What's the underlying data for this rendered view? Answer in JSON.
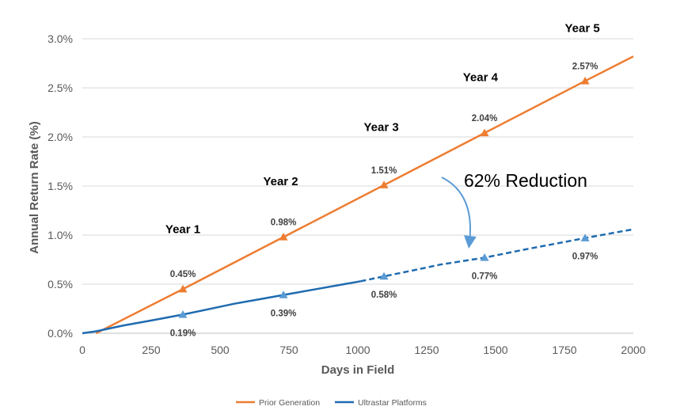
{
  "chart_data": {
    "type": "line",
    "title": "",
    "xlabel": "Days in Field",
    "ylabel": "Annual Return Rate (%)",
    "xlim": [
      0,
      2000
    ],
    "ylim": [
      0,
      3.0
    ],
    "x_ticks": [
      "0",
      "250",
      "500",
      "750",
      "1000",
      "1250",
      "1500",
      "1750",
      "2000"
    ],
    "y_ticks": [
      "0.0%",
      "0.5%",
      "1.0%",
      "1.5%",
      "2.0%",
      "2.5%",
      "3.0%"
    ],
    "grid": "horizontal",
    "legend_position": "bottom",
    "series": [
      {
        "name": "Prior Generation",
        "color": "#ED7D31",
        "points": [
          [
            50,
            0.0
          ],
          [
            365,
            0.45
          ],
          [
            730,
            0.98
          ],
          [
            1095,
            1.51
          ],
          [
            1460,
            2.04
          ],
          [
            1825,
            2.57
          ],
          [
            2000,
            2.82
          ]
        ],
        "markers": [
          {
            "x": 365,
            "y": 0.45,
            "label": "0.45%"
          },
          {
            "x": 730,
            "y": 0.98,
            "label": "0.98%"
          },
          {
            "x": 1095,
            "y": 1.51,
            "label": "1.51%"
          },
          {
            "x": 1460,
            "y": 2.04,
            "label": "2.04%"
          },
          {
            "x": 1825,
            "y": 2.57,
            "label": "2.57%"
          }
        ]
      },
      {
        "name": "Ultrastar Platforms",
        "color": "#1F6BB0",
        "marker_color": "#5B9BD5",
        "points_solid": [
          [
            0,
            0.0
          ],
          [
            50,
            0.02
          ],
          [
            150,
            0.08
          ],
          [
            250,
            0.13
          ],
          [
            365,
            0.19
          ],
          [
            450,
            0.24
          ],
          [
            550,
            0.3
          ],
          [
            650,
            0.35
          ],
          [
            730,
            0.39
          ],
          [
            850,
            0.45
          ],
          [
            950,
            0.5
          ],
          [
            1010,
            0.53
          ]
        ],
        "points_dashed": [
          [
            1010,
            0.53
          ],
          [
            1095,
            0.58
          ],
          [
            1200,
            0.64
          ],
          [
            1300,
            0.7
          ],
          [
            1460,
            0.77
          ],
          [
            1600,
            0.85
          ],
          [
            1750,
            0.93
          ],
          [
            1825,
            0.97
          ],
          [
            2000,
            1.06
          ]
        ],
        "markers": [
          {
            "x": 365,
            "y": 0.19,
            "label": "0.19%"
          },
          {
            "x": 730,
            "y": 0.39,
            "label": "0.39%"
          },
          {
            "x": 1095,
            "y": 0.58,
            "label": "0.58%"
          },
          {
            "x": 1460,
            "y": 0.77,
            "label": "0.77%"
          },
          {
            "x": 1825,
            "y": 0.97,
            "label": "0.97%"
          }
        ]
      }
    ],
    "year_labels": [
      {
        "text": "Year 1",
        "x": 365,
        "y": 1.02
      },
      {
        "text": "Year 2",
        "x": 720,
        "y": 1.51
      },
      {
        "text": "Year 3",
        "x": 1085,
        "y": 2.06
      },
      {
        "text": "Year 4",
        "x": 1445,
        "y": 2.57
      },
      {
        "text": "Year 5",
        "x": 1815,
        "y": 3.07
      }
    ],
    "annotations": [
      {
        "text": "62% Reduction",
        "x": 1385,
        "y": 1.49
      }
    ]
  }
}
